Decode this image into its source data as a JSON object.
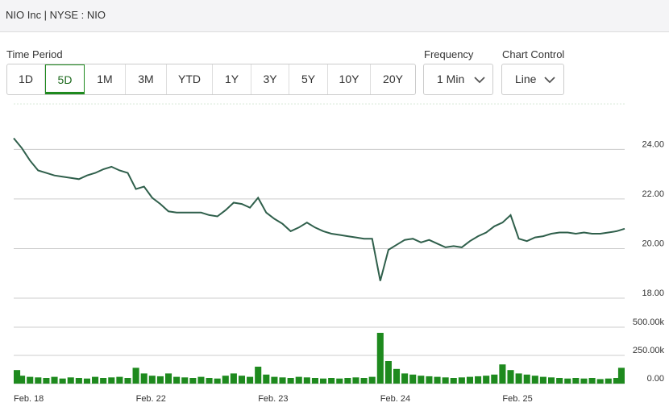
{
  "header": {
    "title": "NIO Inc | NYSE : NIO"
  },
  "controls": {
    "time_period": {
      "label": "Time Period",
      "buttons": [
        {
          "label": "1D",
          "selected": false
        },
        {
          "label": "5D",
          "selected": true
        },
        {
          "label": "1M",
          "selected": false
        },
        {
          "label": "3M",
          "selected": false
        },
        {
          "label": "YTD",
          "selected": false
        },
        {
          "label": "1Y",
          "selected": false
        },
        {
          "label": "3Y",
          "selected": false
        },
        {
          "label": "5Y",
          "selected": false
        },
        {
          "label": "10Y",
          "selected": false
        },
        {
          "label": "20Y",
          "selected": false
        }
      ]
    },
    "frequency": {
      "label": "Frequency",
      "value": "1 Min"
    },
    "chart_control": {
      "label": "Chart Control",
      "value": "Line"
    }
  },
  "chart_data": [
    {
      "type": "line",
      "color": "#2f5f4b",
      "grid": true,
      "values": [
        24.45,
        24.05,
        23.55,
        23.15,
        23.05,
        22.95,
        22.9,
        22.85,
        22.8,
        22.95,
        23.05,
        23.2,
        23.3,
        23.15,
        23.05,
        22.4,
        22.5,
        22.05,
        21.8,
        21.5,
        21.45,
        21.45,
        21.45,
        21.45,
        21.35,
        21.3,
        21.55,
        21.85,
        21.8,
        21.65,
        22.05,
        21.45,
        21.2,
        21.0,
        20.7,
        20.85,
        21.05,
        20.85,
        20.7,
        20.6,
        20.55,
        20.5,
        20.45,
        20.4,
        20.4,
        18.7,
        19.95,
        20.15,
        20.35,
        20.4,
        20.25,
        20.35,
        20.2,
        20.05,
        20.1,
        20.05,
        20.3,
        20.5,
        20.65,
        20.9,
        21.05,
        21.35,
        20.4,
        20.3,
        20.45,
        20.5,
        20.6,
        20.65,
        20.65,
        20.6,
        20.65,
        20.6,
        20.6,
        20.65,
        20.7,
        20.8
      ],
      "ylim": [
        18,
        25.8
      ],
      "yticks": [
        {
          "value": 18,
          "label": "18.00"
        },
        {
          "value": 20,
          "label": "20.00"
        },
        {
          "value": 22,
          "label": "22.00"
        },
        {
          "value": 24,
          "label": "24.00"
        }
      ],
      "xticks": [
        {
          "value": 0,
          "label": "Feb. 18"
        },
        {
          "value": 15,
          "label": "Feb. 22"
        },
        {
          "value": 30,
          "label": "Feb. 23"
        },
        {
          "value": 45,
          "label": "Feb. 24"
        },
        {
          "value": 60,
          "label": "Feb. 25"
        }
      ]
    },
    {
      "type": "bar",
      "color": "#1e8a1e",
      "values": [
        120000,
        70000,
        60000,
        55000,
        50000,
        60000,
        45000,
        55000,
        50000,
        45000,
        60000,
        50000,
        55000,
        60000,
        50000,
        140000,
        90000,
        70000,
        65000,
        90000,
        60000,
        55000,
        50000,
        60000,
        50000,
        45000,
        70000,
        90000,
        70000,
        60000,
        150000,
        80000,
        60000,
        55000,
        50000,
        60000,
        55000,
        50000,
        45000,
        50000,
        45000,
        50000,
        55000,
        50000,
        60000,
        450000,
        200000,
        130000,
        90000,
        80000,
        70000,
        65000,
        60000,
        55000,
        50000,
        55000,
        60000,
        65000,
        70000,
        80000,
        170000,
        120000,
        90000,
        80000,
        70000,
        60000,
        55000,
        50000,
        45000,
        50000,
        45000,
        50000,
        40000,
        45000,
        50000,
        140000
      ],
      "ylim": [
        0,
        500000
      ],
      "yticks": [
        {
          "value": 0,
          "label": "0.00"
        },
        {
          "value": 250000,
          "label": "250.00k"
        },
        {
          "value": 500000,
          "label": "500.00k"
        }
      ]
    }
  ]
}
